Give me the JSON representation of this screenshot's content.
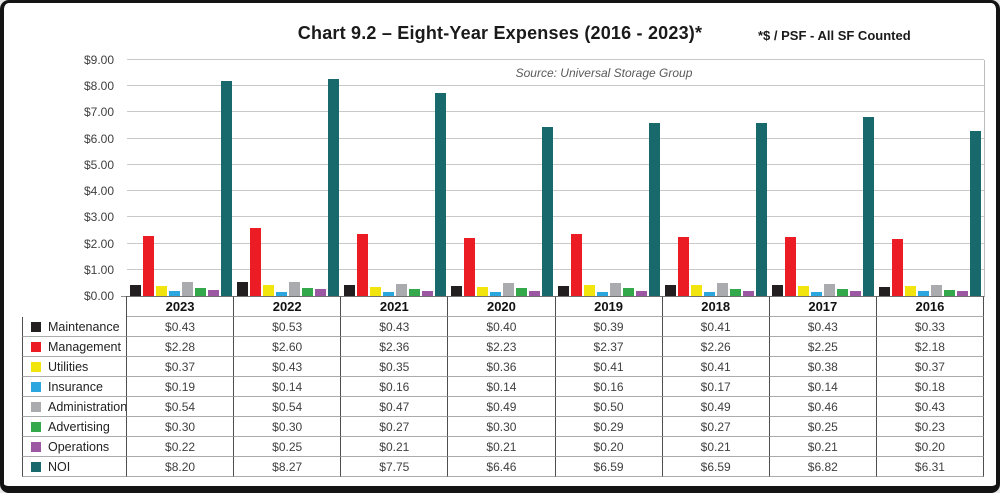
{
  "title": "Chart 9.2 – Eight-Year Expenses (2016 - 2023)*",
  "subtitle_right": "*$ / PSF - All SF Counted",
  "source": "Source: Universal Storage Group",
  "chart_data": {
    "type": "bar",
    "title": "Chart 9.2 – Eight-Year Expenses (2016 - 2023)*",
    "note": "*$ / PSF - All SF Counted",
    "source": "Source: Universal Storage Group",
    "categories": [
      "2023",
      "2022",
      "2021",
      "2020",
      "2019",
      "2018",
      "2017",
      "2016"
    ],
    "series": [
      {
        "name": "Maintenance",
        "color": "#231F20",
        "values": [
          0.43,
          0.53,
          0.43,
          0.4,
          0.39,
          0.41,
          0.43,
          0.33
        ]
      },
      {
        "name": "Management",
        "color": "#EC1C24",
        "values": [
          2.28,
          2.6,
          2.36,
          2.23,
          2.37,
          2.26,
          2.25,
          2.18
        ]
      },
      {
        "name": "Utilities",
        "color": "#F2E50E",
        "values": [
          0.37,
          0.43,
          0.35,
          0.36,
          0.41,
          0.41,
          0.38,
          0.37
        ]
      },
      {
        "name": "Insurance",
        "color": "#2BA6DE",
        "values": [
          0.19,
          0.14,
          0.16,
          0.14,
          0.16,
          0.17,
          0.14,
          0.18
        ]
      },
      {
        "name": "Administration",
        "color": "#A9ABAE",
        "values": [
          0.54,
          0.54,
          0.47,
          0.49,
          0.5,
          0.49,
          0.46,
          0.43
        ]
      },
      {
        "name": "Advertising",
        "color": "#33A94C",
        "values": [
          0.3,
          0.3,
          0.27,
          0.3,
          0.29,
          0.27,
          0.25,
          0.23
        ]
      },
      {
        "name": "Operations",
        "color": "#9C58A3",
        "values": [
          0.22,
          0.25,
          0.21,
          0.21,
          0.2,
          0.21,
          0.21,
          0.2
        ]
      },
      {
        "name": "NOI",
        "color": "#17696B",
        "values": [
          8.2,
          8.27,
          7.75,
          6.46,
          6.59,
          6.59,
          6.82,
          6.31
        ]
      }
    ],
    "xlabel": "",
    "ylabel": "",
    "ylim": [
      0,
      9
    ],
    "ytick_step": 1,
    "ytick_prefix": "$",
    "grid": true,
    "legend_position": "table-left",
    "value_prefix": "$"
  }
}
